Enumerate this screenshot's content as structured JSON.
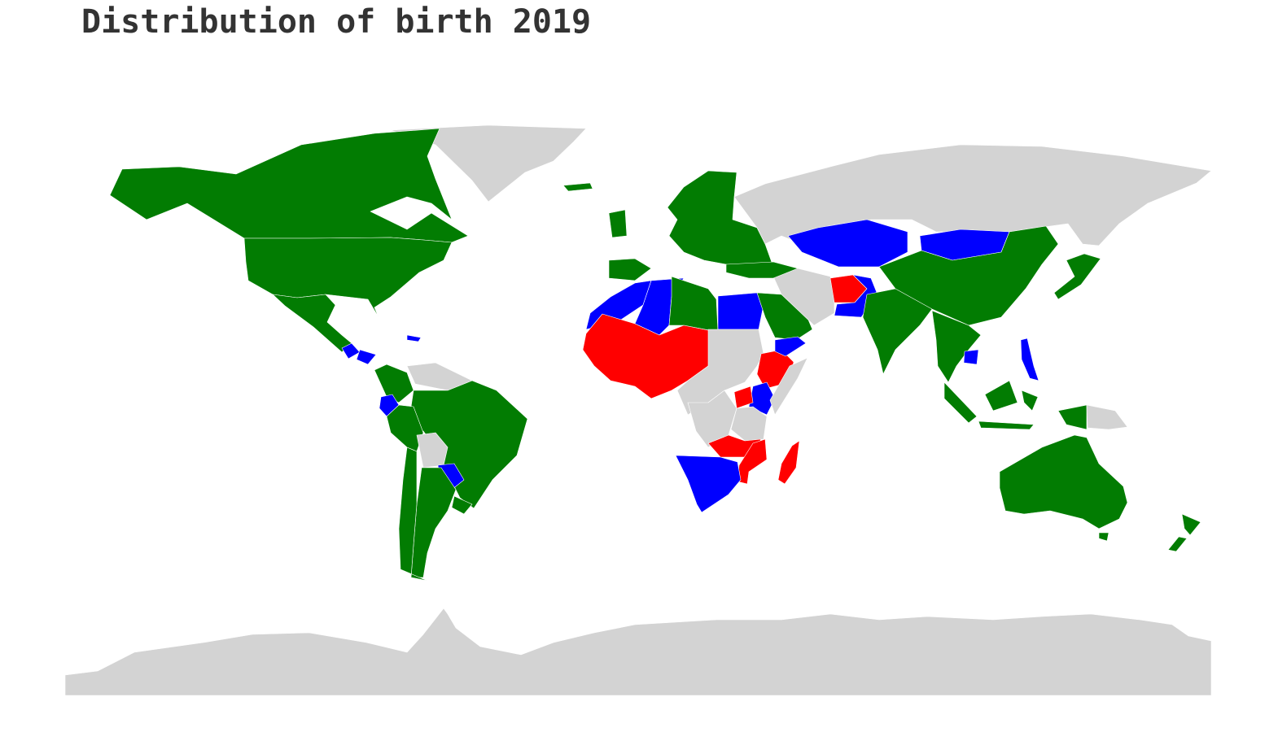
{
  "title": "Distribution of birth 2019",
  "colors": {
    "background": "#ffffff",
    "no_data": "#d3d3d3",
    "group_green": "#027c02",
    "group_blue": "#0000ff",
    "group_red": "#ff0000",
    "title": "#333333"
  },
  "regions": [
    {
      "name": "Greenland",
      "group": "no_data"
    },
    {
      "name": "Canada",
      "group": "group_green"
    },
    {
      "name": "United States",
      "group": "group_green"
    },
    {
      "name": "Mexico",
      "group": "group_green"
    },
    {
      "name": "Guatemala",
      "group": "group_blue"
    },
    {
      "name": "Honduras",
      "group": "group_blue"
    },
    {
      "name": "Caribbean",
      "group": "group_blue"
    },
    {
      "name": "Colombia",
      "group": "group_green"
    },
    {
      "name": "Venezuela",
      "group": "no_data"
    },
    {
      "name": "Ecuador",
      "group": "group_blue"
    },
    {
      "name": "Brazil",
      "group": "group_green"
    },
    {
      "name": "Peru",
      "group": "group_green"
    },
    {
      "name": "Bolivia",
      "group": "no_data"
    },
    {
      "name": "Paraguay",
      "group": "group_blue"
    },
    {
      "name": "Argentina",
      "group": "group_green"
    },
    {
      "name": "Chile",
      "group": "group_green"
    },
    {
      "name": "Uruguay",
      "group": "group_green"
    },
    {
      "name": "Europe",
      "group": "group_green"
    },
    {
      "name": "Iceland",
      "group": "group_green"
    },
    {
      "name": "Russia",
      "group": "no_data"
    },
    {
      "name": "Morocco and Western Sahara",
      "group": "group_blue"
    },
    {
      "name": "Algeria",
      "group": "group_blue"
    },
    {
      "name": "Libya",
      "group": "group_green"
    },
    {
      "name": "Egypt",
      "group": "group_blue"
    },
    {
      "name": "West Africa and Sahel",
      "group": "group_red"
    },
    {
      "name": "Sudan and Central Africa",
      "group": "no_data"
    },
    {
      "name": "Ethiopia",
      "group": "group_red"
    },
    {
      "name": "Kenya",
      "group": "group_blue"
    },
    {
      "name": "Somalia",
      "group": "no_data"
    },
    {
      "name": "Uganda",
      "group": "group_red"
    },
    {
      "name": "Democratic Republic of the Congo",
      "group": "no_data"
    },
    {
      "name": "Tanzania",
      "group": "no_data"
    },
    {
      "name": "Zambia and Malawi",
      "group": "group_red"
    },
    {
      "name": "Mozambique",
      "group": "group_red"
    },
    {
      "name": "Madagascar",
      "group": "group_red"
    },
    {
      "name": "Southern Africa",
      "group": "group_blue"
    },
    {
      "name": "Saudi Arabia",
      "group": "group_green"
    },
    {
      "name": "Yemen",
      "group": "group_blue"
    },
    {
      "name": "Iran and Gulf",
      "group": "no_data"
    },
    {
      "name": "Turkey",
      "group": "group_green"
    },
    {
      "name": "Kazakhstan",
      "group": "group_blue"
    },
    {
      "name": "Mongolia",
      "group": "group_blue"
    },
    {
      "name": "Afghanistan",
      "group": "group_red"
    },
    {
      "name": "Pakistan",
      "group": "group_blue"
    },
    {
      "name": "India",
      "group": "group_green"
    },
    {
      "name": "China",
      "group": "group_green"
    },
    {
      "name": "Southeast Asia",
      "group": "group_green"
    },
    {
      "name": "Cambodia",
      "group": "group_blue"
    },
    {
      "name": "Philippines",
      "group": "group_blue"
    },
    {
      "name": "Japan",
      "group": "group_green"
    },
    {
      "name": "Indonesia",
      "group": "group_green"
    },
    {
      "name": "Papua New Guinea",
      "group": "no_data"
    },
    {
      "name": "Australia",
      "group": "group_green"
    },
    {
      "name": "New Zealand",
      "group": "group_green"
    },
    {
      "name": "Antarctica",
      "group": "no_data"
    }
  ]
}
